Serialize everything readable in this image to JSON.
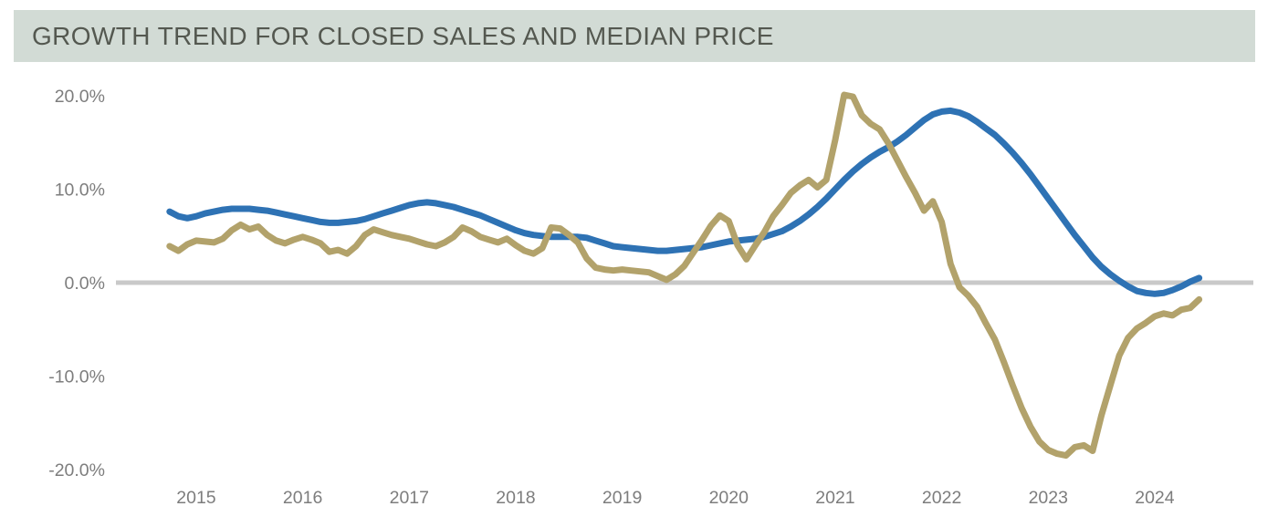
{
  "header": {
    "title": "GROWTH TREND FOR CLOSED SALES AND MEDIAN PRICE",
    "background_color": "#d2dbd5",
    "text_color": "#545850"
  },
  "chart_data": {
    "type": "line",
    "title": "GROWTH TREND FOR CLOSED SALES AND MEDIAN PRICE",
    "x_unit": "month",
    "x_start": "2014-10",
    "x_end": "2024-06",
    "x_tick_labels": [
      "2015",
      "2016",
      "2017",
      "2018",
      "2019",
      "2020",
      "2021",
      "2022",
      "2023",
      "2024"
    ],
    "y_ticks": [
      {
        "value": 20,
        "label": "20.0%"
      },
      {
        "value": 10,
        "label": "10.0%"
      },
      {
        "value": 0,
        "label": "0.0%"
      },
      {
        "value": -10,
        "label": "-10.0%"
      },
      {
        "value": -20,
        "label": "-20.0%"
      }
    ],
    "ylim": [
      -22,
      22
    ],
    "grid": false,
    "legend": "none",
    "zero_line_color": "#c9c9c9",
    "axis_label_color": "#7d7d7d",
    "series": [
      {
        "name": "Median Price",
        "color": "#2e72b4",
        "values": [
          7.6,
          7.1,
          6.9,
          7.1,
          7.4,
          7.6,
          7.8,
          7.9,
          7.9,
          7.9,
          7.8,
          7.7,
          7.5,
          7.3,
          7.1,
          6.9,
          6.7,
          6.5,
          6.4,
          6.4,
          6.5,
          6.6,
          6.8,
          7.1,
          7.4,
          7.7,
          8.0,
          8.3,
          8.5,
          8.6,
          8.5,
          8.3,
          8.1,
          7.8,
          7.5,
          7.2,
          6.8,
          6.4,
          6.0,
          5.6,
          5.3,
          5.1,
          5.0,
          4.9,
          4.9,
          4.9,
          4.9,
          4.8,
          4.5,
          4.2,
          3.9,
          3.8,
          3.7,
          3.6,
          3.5,
          3.4,
          3.4,
          3.5,
          3.6,
          3.7,
          3.8,
          4.0,
          4.2,
          4.4,
          4.5,
          4.6,
          4.7,
          4.9,
          5.2,
          5.5,
          6.0,
          6.6,
          7.3,
          8.1,
          9.0,
          10.0,
          11.0,
          11.9,
          12.7,
          13.4,
          14.0,
          14.5,
          15.1,
          15.8,
          16.6,
          17.4,
          18.0,
          18.3,
          18.4,
          18.2,
          17.8,
          17.2,
          16.5,
          15.8,
          14.9,
          13.9,
          12.8,
          11.6,
          10.3,
          9.0,
          7.7,
          6.4,
          5.1,
          3.9,
          2.7,
          1.7,
          0.9,
          0.2,
          -0.4,
          -0.9,
          -1.1,
          -1.2,
          -1.1,
          -0.8,
          -0.4,
          0.1,
          0.5
        ]
      },
      {
        "name": "Closed Sales",
        "color": "#b2a26b",
        "values": [
          3.9,
          3.4,
          4.1,
          4.5,
          4.4,
          4.3,
          4.7,
          5.6,
          6.2,
          5.7,
          6.0,
          5.1,
          4.5,
          4.2,
          4.6,
          4.9,
          4.6,
          4.2,
          3.3,
          3.5,
          3.1,
          3.9,
          5.1,
          5.7,
          5.4,
          5.1,
          4.9,
          4.7,
          4.4,
          4.1,
          3.9,
          4.3,
          4.9,
          5.9,
          5.5,
          4.9,
          4.6,
          4.3,
          4.7,
          4.0,
          3.4,
          3.1,
          3.7,
          5.9,
          5.8,
          5.1,
          4.3,
          2.6,
          1.6,
          1.4,
          1.3,
          1.4,
          1.3,
          1.2,
          1.1,
          0.7,
          0.3,
          0.9,
          1.8,
          3.2,
          4.6,
          6.1,
          7.2,
          6.6,
          4.0,
          2.5,
          4.0,
          5.4,
          7.1,
          8.3,
          9.6,
          10.4,
          11.0,
          10.2,
          11.0,
          15.3,
          20.1,
          19.9,
          17.9,
          17.0,
          16.4,
          14.9,
          13.1,
          11.3,
          9.6,
          7.7,
          8.7,
          6.5,
          2.0,
          -0.5,
          -1.4,
          -2.6,
          -4.4,
          -6.1,
          -8.5,
          -11.0,
          -13.4,
          -15.4,
          -17.0,
          -17.9,
          -18.3,
          -18.5,
          -17.6,
          -17.4,
          -18.0,
          -14.2,
          -11.0,
          -7.8,
          -5.9,
          -4.9,
          -4.3,
          -3.6,
          -3.3,
          -3.5,
          -2.9,
          -2.7,
          -1.8
        ]
      }
    ]
  }
}
